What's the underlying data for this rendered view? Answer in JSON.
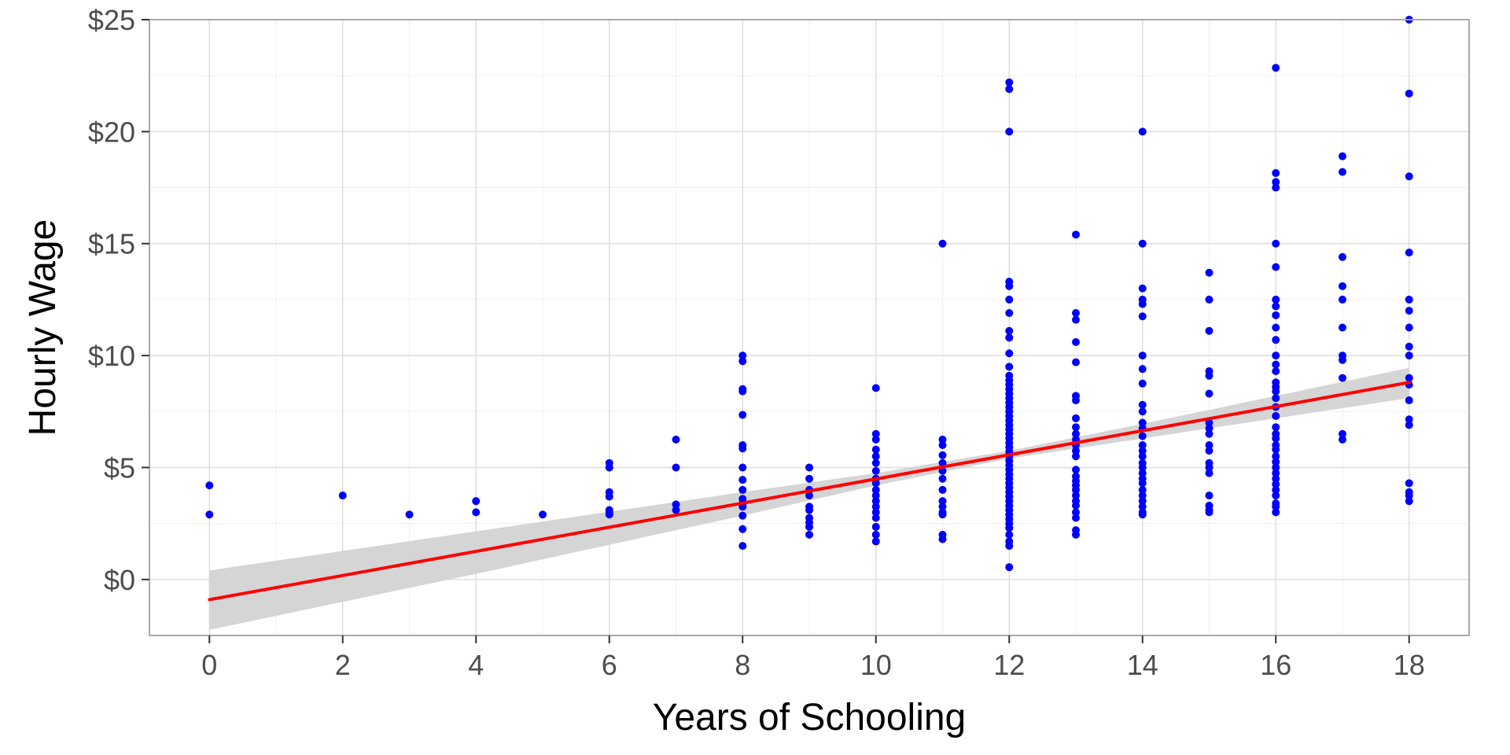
{
  "chart_data": {
    "type": "scatter",
    "title": "",
    "xlabel": "Years of Schooling",
    "ylabel": "Hourly Wage",
    "xlim": [
      -0.9,
      18.9
    ],
    "ylim": [
      -2.5,
      25
    ],
    "x_ticks": [
      0,
      2,
      4,
      6,
      8,
      10,
      12,
      14,
      16,
      18
    ],
    "y_ticks": [
      0,
      5,
      10,
      15,
      20,
      25
    ],
    "y_tick_labels": [
      "$0",
      "$5",
      "$10",
      "$15",
      "$20",
      "$25"
    ],
    "grid": true,
    "legend": "none",
    "colors": {
      "points": "#0000ff",
      "fit_line": "#ff0000",
      "confidence_band": "#d3d3d3",
      "grid": "#dedede",
      "frame": "#aaaaaa"
    },
    "series": [
      {
        "kind": "points",
        "points": [
          [
            0,
            4.2
          ],
          [
            0,
            2.9
          ],
          [
            2,
            3.75
          ],
          [
            3,
            2.9
          ],
          [
            4,
            3.5
          ],
          [
            4,
            3.0
          ],
          [
            5,
            2.9
          ],
          [
            6,
            5.2
          ],
          [
            6,
            5.0
          ],
          [
            6,
            3.9
          ],
          [
            6,
            3.7
          ],
          [
            6,
            3.1
          ],
          [
            6,
            3.0
          ],
          [
            6,
            2.9
          ],
          [
            7,
            6.25
          ],
          [
            7,
            5.0
          ],
          [
            7,
            3.35
          ],
          [
            7,
            3.1
          ],
          [
            8,
            10.0
          ],
          [
            8,
            9.75
          ],
          [
            8,
            8.5
          ],
          [
            8,
            8.4
          ],
          [
            8,
            7.35
          ],
          [
            8,
            6.0
          ],
          [
            8,
            5.85
          ],
          [
            8,
            5.0
          ],
          [
            8,
            4.45
          ],
          [
            8,
            4.0
          ],
          [
            8,
            3.6
          ],
          [
            8,
            3.4
          ],
          [
            8,
            3.35
          ],
          [
            8,
            3.25
          ],
          [
            8,
            2.85
          ],
          [
            8,
            2.25
          ],
          [
            8,
            1.5
          ],
          [
            9,
            5.0
          ],
          [
            9,
            4.5
          ],
          [
            9,
            4.0
          ],
          [
            9,
            3.75
          ],
          [
            9,
            3.25
          ],
          [
            9,
            3.1
          ],
          [
            9,
            2.75
          ],
          [
            9,
            2.55
          ],
          [
            9,
            2.35
          ],
          [
            9,
            2.0
          ],
          [
            10,
            8.55
          ],
          [
            10,
            6.5
          ],
          [
            10,
            6.25
          ],
          [
            10,
            5.8
          ],
          [
            10,
            5.5
          ],
          [
            10,
            5.2
          ],
          [
            10,
            4.85
          ],
          [
            10,
            4.5
          ],
          [
            10,
            4.3
          ],
          [
            10,
            4.0
          ],
          [
            10,
            3.75
          ],
          [
            10,
            3.5
          ],
          [
            10,
            3.25
          ],
          [
            10,
            3.0
          ],
          [
            10,
            2.75
          ],
          [
            10,
            2.35
          ],
          [
            10,
            2.0
          ],
          [
            10,
            1.7
          ],
          [
            11,
            15.0
          ],
          [
            11,
            6.25
          ],
          [
            11,
            6.0
          ],
          [
            11,
            5.55
          ],
          [
            11,
            5.2
          ],
          [
            11,
            4.85
          ],
          [
            11,
            4.5
          ],
          [
            11,
            4.0
          ],
          [
            11,
            3.5
          ],
          [
            11,
            3.25
          ],
          [
            11,
            3.0
          ],
          [
            11,
            2.9
          ],
          [
            11,
            2.0
          ],
          [
            11,
            1.8
          ],
          [
            12,
            22.2
          ],
          [
            12,
            21.9
          ],
          [
            12,
            20.0
          ],
          [
            12,
            13.3
          ],
          [
            12,
            13.1
          ],
          [
            12,
            12.5
          ],
          [
            12,
            11.9
          ],
          [
            12,
            11.1
          ],
          [
            12,
            10.8
          ],
          [
            12,
            10.1
          ],
          [
            12,
            9.5
          ],
          [
            12,
            9.1
          ],
          [
            12,
            8.9
          ],
          [
            12,
            8.7
          ],
          [
            12,
            8.5
          ],
          [
            12,
            8.3
          ],
          [
            12,
            8.1
          ],
          [
            12,
            7.9
          ],
          [
            12,
            7.7
          ],
          [
            12,
            7.5
          ],
          [
            12,
            7.3
          ],
          [
            12,
            7.1
          ],
          [
            12,
            6.9
          ],
          [
            12,
            6.7
          ],
          [
            12,
            6.5
          ],
          [
            12,
            6.3
          ],
          [
            12,
            6.1
          ],
          [
            12,
            5.9
          ],
          [
            12,
            5.7
          ],
          [
            12,
            5.5
          ],
          [
            12,
            5.3
          ],
          [
            12,
            5.1
          ],
          [
            12,
            4.9
          ],
          [
            12,
            4.7
          ],
          [
            12,
            4.5
          ],
          [
            12,
            4.3
          ],
          [
            12,
            4.1
          ],
          [
            12,
            3.9
          ],
          [
            12,
            3.7
          ],
          [
            12,
            3.5
          ],
          [
            12,
            3.3
          ],
          [
            12,
            3.1
          ],
          [
            12,
            2.9
          ],
          [
            12,
            2.7
          ],
          [
            12,
            2.5
          ],
          [
            12,
            2.3
          ],
          [
            12,
            2.0
          ],
          [
            12,
            1.7
          ],
          [
            12,
            1.5
          ],
          [
            12,
            0.55
          ],
          [
            13,
            15.4
          ],
          [
            13,
            11.9
          ],
          [
            13,
            11.6
          ],
          [
            13,
            10.6
          ],
          [
            13,
            9.7
          ],
          [
            13,
            8.2
          ],
          [
            13,
            8.0
          ],
          [
            13,
            7.2
          ],
          [
            13,
            6.8
          ],
          [
            13,
            6.5
          ],
          [
            13,
            6.25
          ],
          [
            13,
            6.0
          ],
          [
            13,
            5.75
          ],
          [
            13,
            5.5
          ],
          [
            13,
            4.9
          ],
          [
            13,
            4.6
          ],
          [
            13,
            4.4
          ],
          [
            13,
            4.2
          ],
          [
            13,
            4.0
          ],
          [
            13,
            3.75
          ],
          [
            13,
            3.5
          ],
          [
            13,
            3.3
          ],
          [
            13,
            3.0
          ],
          [
            13,
            2.75
          ],
          [
            13,
            2.2
          ],
          [
            13,
            2.0
          ],
          [
            14,
            20.0
          ],
          [
            14,
            15.0
          ],
          [
            14,
            13.0
          ],
          [
            14,
            12.5
          ],
          [
            14,
            12.3
          ],
          [
            14,
            11.75
          ],
          [
            14,
            10.0
          ],
          [
            14,
            9.4
          ],
          [
            14,
            8.75
          ],
          [
            14,
            7.8
          ],
          [
            14,
            7.5
          ],
          [
            14,
            7.0
          ],
          [
            14,
            6.75
          ],
          [
            14,
            6.4
          ],
          [
            14,
            6.0
          ],
          [
            14,
            5.75
          ],
          [
            14,
            5.5
          ],
          [
            14,
            5.2
          ],
          [
            14,
            5.0
          ],
          [
            14,
            4.75
          ],
          [
            14,
            4.5
          ],
          [
            14,
            4.3
          ],
          [
            14,
            4.0
          ],
          [
            14,
            3.75
          ],
          [
            14,
            3.5
          ],
          [
            14,
            3.25
          ],
          [
            14,
            3.0
          ],
          [
            14,
            2.9
          ],
          [
            15,
            13.7
          ],
          [
            15,
            12.5
          ],
          [
            15,
            11.1
          ],
          [
            15,
            9.3
          ],
          [
            15,
            9.1
          ],
          [
            15,
            8.3
          ],
          [
            15,
            7.0
          ],
          [
            15,
            6.75
          ],
          [
            15,
            6.5
          ],
          [
            15,
            6.0
          ],
          [
            15,
            5.75
          ],
          [
            15,
            5.2
          ],
          [
            15,
            5.0
          ],
          [
            15,
            4.75
          ],
          [
            15,
            3.75
          ],
          [
            15,
            3.3
          ],
          [
            15,
            3.1
          ],
          [
            15,
            3.0
          ],
          [
            16,
            22.85
          ],
          [
            16,
            18.15
          ],
          [
            16,
            17.75
          ],
          [
            16,
            17.5
          ],
          [
            16,
            15.0
          ],
          [
            16,
            13.95
          ],
          [
            16,
            12.5
          ],
          [
            16,
            12.2
          ],
          [
            16,
            11.8
          ],
          [
            16,
            11.25
          ],
          [
            16,
            10.7
          ],
          [
            16,
            10.0
          ],
          [
            16,
            9.6
          ],
          [
            16,
            9.3
          ],
          [
            16,
            8.8
          ],
          [
            16,
            8.6
          ],
          [
            16,
            8.4
          ],
          [
            16,
            8.1
          ],
          [
            16,
            7.7
          ],
          [
            16,
            7.3
          ],
          [
            16,
            6.8
          ],
          [
            16,
            6.5
          ],
          [
            16,
            6.3
          ],
          [
            16,
            6.0
          ],
          [
            16,
            5.8
          ],
          [
            16,
            5.5
          ],
          [
            16,
            5.25
          ],
          [
            16,
            5.0
          ],
          [
            16,
            4.75
          ],
          [
            16,
            4.5
          ],
          [
            16,
            4.25
          ],
          [
            16,
            4.0
          ],
          [
            16,
            3.75
          ],
          [
            16,
            3.4
          ],
          [
            16,
            3.25
          ],
          [
            16,
            3.0
          ],
          [
            17,
            18.9
          ],
          [
            17,
            18.2
          ],
          [
            17,
            14.4
          ],
          [
            17,
            13.1
          ],
          [
            17,
            12.5
          ],
          [
            17,
            11.25
          ],
          [
            17,
            10.0
          ],
          [
            17,
            9.8
          ],
          [
            17,
            9.0
          ],
          [
            17,
            6.5
          ],
          [
            17,
            6.25
          ],
          [
            18,
            25.0
          ],
          [
            18,
            21.7
          ],
          [
            18,
            18.0
          ],
          [
            18,
            14.6
          ],
          [
            18,
            12.5
          ],
          [
            18,
            12.0
          ],
          [
            18,
            11.25
          ],
          [
            18,
            10.4
          ],
          [
            18,
            10.0
          ],
          [
            18,
            9.0
          ],
          [
            18,
            8.7
          ],
          [
            18,
            8.0
          ],
          [
            18,
            7.15
          ],
          [
            18,
            6.9
          ],
          [
            18,
            4.3
          ],
          [
            18,
            3.9
          ],
          [
            18,
            3.75
          ],
          [
            18,
            3.5
          ]
        ]
      },
      {
        "kind": "fit_line",
        "points": [
          [
            0,
            -0.9
          ],
          [
            18,
            8.8
          ]
        ]
      },
      {
        "kind": "confidence_band",
        "upper": [
          [
            0,
            0.4
          ],
          [
            4,
            2.15
          ],
          [
            8,
            3.9
          ],
          [
            10,
            4.75
          ],
          [
            12,
            5.75
          ],
          [
            14,
            6.95
          ],
          [
            18,
            9.45
          ]
        ],
        "lower": [
          [
            0,
            -2.25
          ],
          [
            4,
            0.25
          ],
          [
            8,
            2.85
          ],
          [
            10,
            4.2
          ],
          [
            12,
            5.4
          ],
          [
            14,
            6.3
          ],
          [
            18,
            8.1
          ]
        ]
      }
    ]
  }
}
